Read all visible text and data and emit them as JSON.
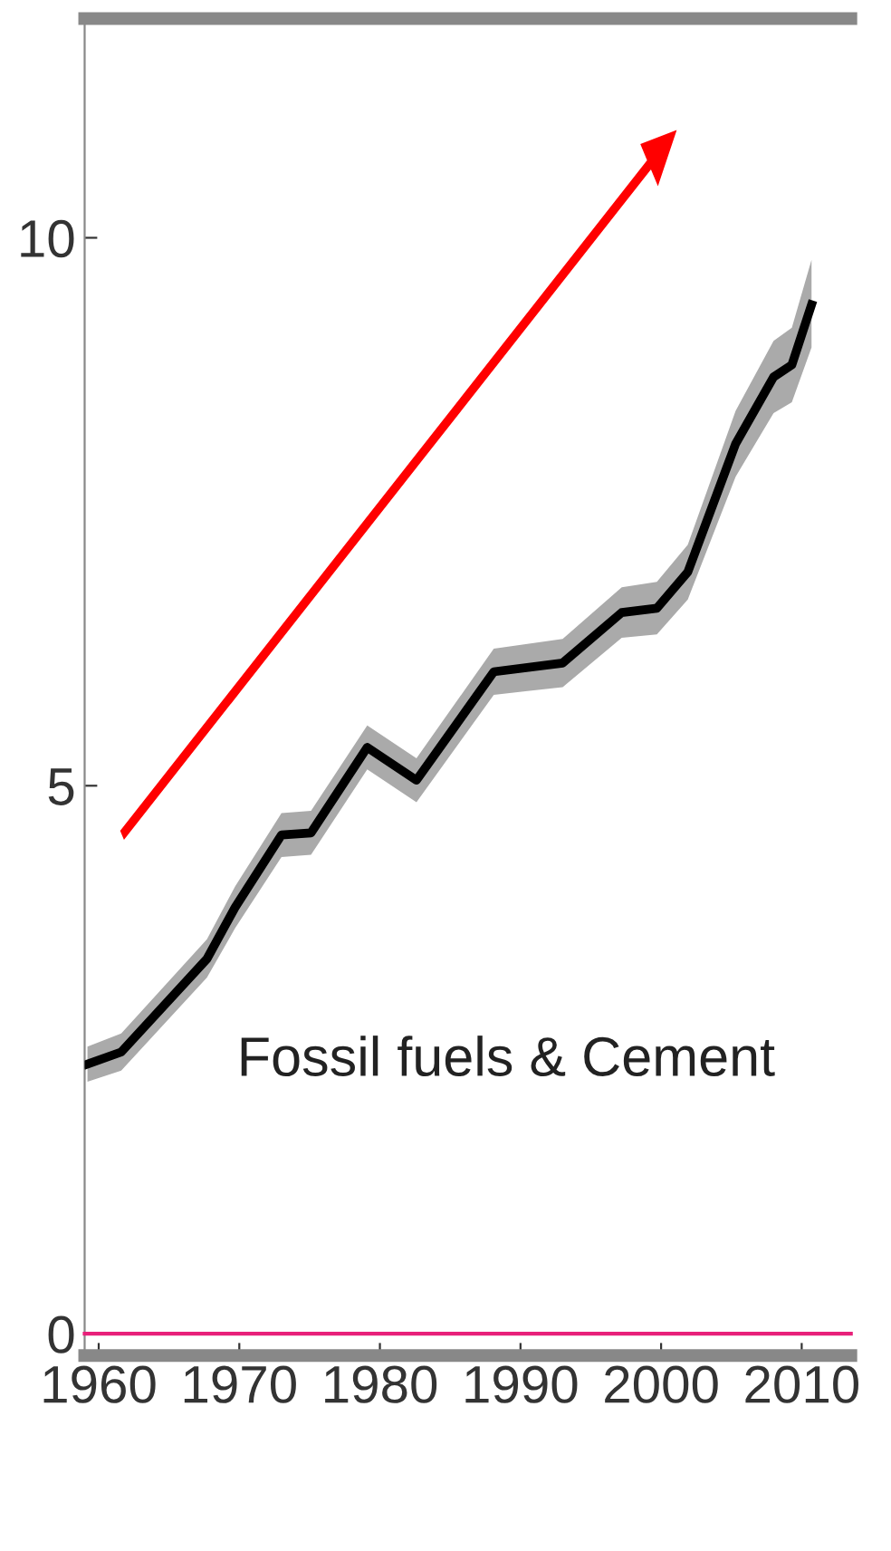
{
  "chart_data": {
    "type": "line",
    "x": [
      1959.2,
      1961.6,
      1967.7,
      1969.7,
      1973.0,
      1975.1,
      1979.1,
      1982.6,
      1988.1,
      1993.0,
      1997.2,
      1999.7,
      2001.9,
      2005.3,
      2008.0,
      2009.3,
      2010.7
    ],
    "series": [
      {
        "name": "Fossil fuels & Cement",
        "color": "#000000",
        "values": [
          2.46,
          2.57,
          3.42,
          3.89,
          4.55,
          4.57,
          5.35,
          5.05,
          6.04,
          6.12,
          6.58,
          6.62,
          6.95,
          8.12,
          8.73,
          8.84,
          9.39
        ],
        "lower": [
          2.3,
          2.4,
          3.25,
          3.7,
          4.35,
          4.37,
          5.15,
          4.85,
          5.83,
          5.9,
          6.35,
          6.38,
          6.7,
          7.82,
          8.4,
          8.5,
          9.0
        ],
        "upper": [
          2.62,
          2.74,
          3.6,
          4.08,
          4.75,
          4.77,
          5.55,
          5.25,
          6.25,
          6.34,
          6.81,
          6.86,
          7.2,
          8.42,
          9.06,
          9.18,
          9.8
        ]
      }
    ],
    "xlim": [
      1959,
      2013.5
    ],
    "ylim": [
      -0.2,
      12
    ],
    "xticks": [
      1960,
      1970,
      1980,
      1990,
      2000,
      2010
    ],
    "yticks": [
      0,
      5,
      10
    ],
    "ref_lines": [
      {
        "axis": "y",
        "value": 0,
        "color": "#e8207a"
      }
    ],
    "grid": false,
    "legend": false
  }
}
